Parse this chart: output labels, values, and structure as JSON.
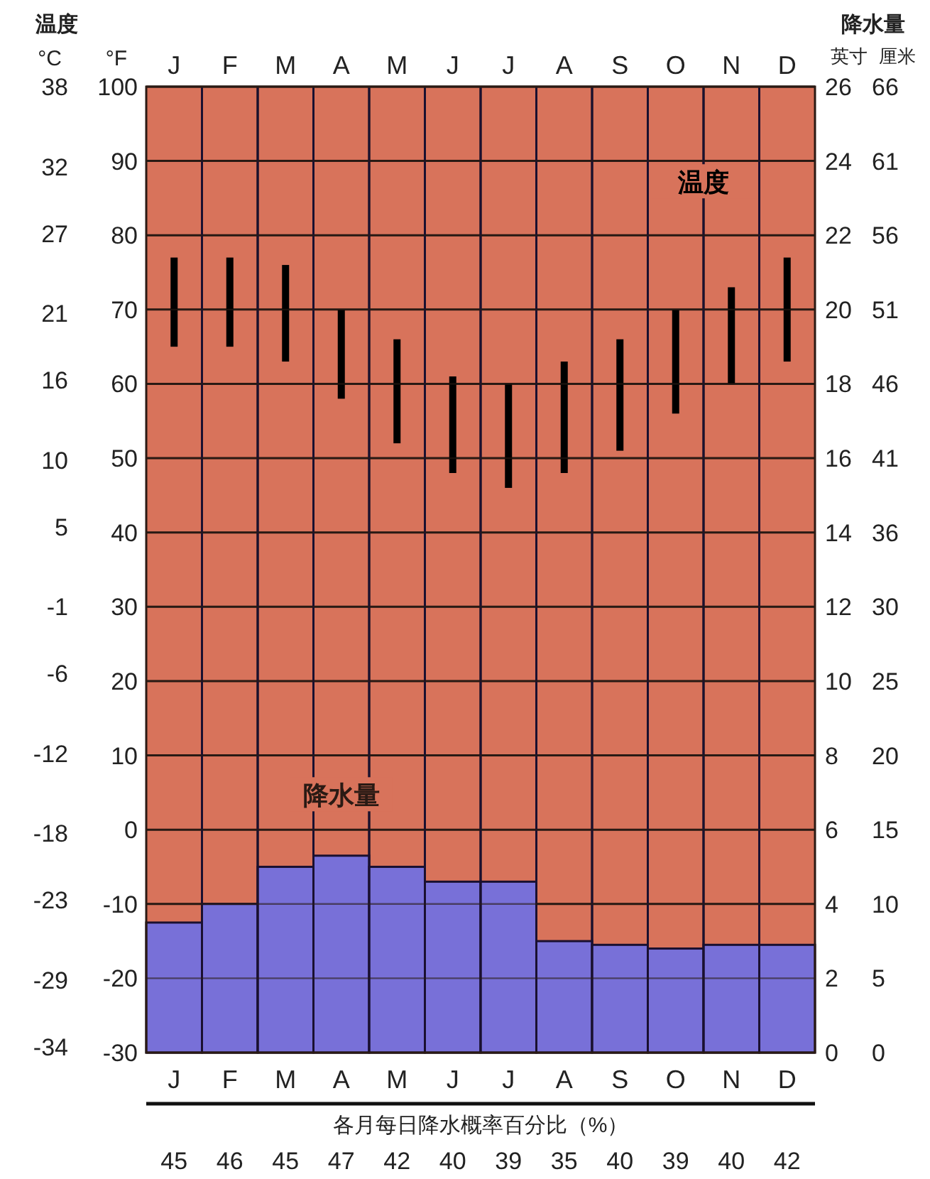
{
  "chart_data": {
    "type": "bar",
    "categories": [
      "J",
      "F",
      "M",
      "A",
      "M",
      "J",
      "J",
      "A",
      "S",
      "O",
      "N",
      "D"
    ],
    "series": [
      {
        "name": "温度",
        "color": "#000000",
        "base": [
          65,
          65,
          63,
          58,
          52,
          48,
          46,
          48,
          51,
          56,
          60,
          63
        ],
        "values": [
          12,
          12,
          13,
          12,
          14,
          13,
          14,
          15,
          15,
          14,
          13,
          14
        ]
      },
      {
        "name": "降水量",
        "axis": "y2",
        "color": "#7870d8",
        "values": [
          3.5,
          4.0,
          5.0,
          5.3,
          5.0,
          4.6,
          4.6,
          3.0,
          2.9,
          2.8,
          2.9,
          2.9
        ]
      }
    ],
    "ylabel": "°F",
    "y3label": "°C",
    "y2label": "英寸",
    "ylim": [
      -30,
      100
    ],
    "yticks": [
      -30,
      -20,
      -10,
      0,
      10,
      20,
      30,
      40,
      50,
      60,
      70,
      80,
      90,
      100
    ],
    "y3lim": [
      -34.44,
      38
    ],
    "y3ticks": [
      -34,
      -29,
      -23,
      -18,
      -12,
      -6,
      -1,
      5,
      10,
      16,
      21,
      27,
      32,
      38
    ],
    "y2lim": [
      0,
      26
    ],
    "y2ticks": [
      0,
      2,
      4,
      6,
      8,
      10,
      12,
      14,
      16,
      18,
      20,
      22,
      24,
      26
    ],
    "grid": true,
    "annotations": [
      "温度",
      "降水量",
      "各月每日降水概率百分比（%）",
      "厘米",
      "45",
      "46",
      "45",
      "47",
      "42",
      "40",
      "39",
      "35",
      "40",
      "39",
      "40",
      "42",
      "0",
      "5",
      "10",
      "15",
      "20",
      "25",
      "30",
      "36",
      "41",
      "46",
      "51",
      "56",
      "61",
      "66"
    ]
  }
}
